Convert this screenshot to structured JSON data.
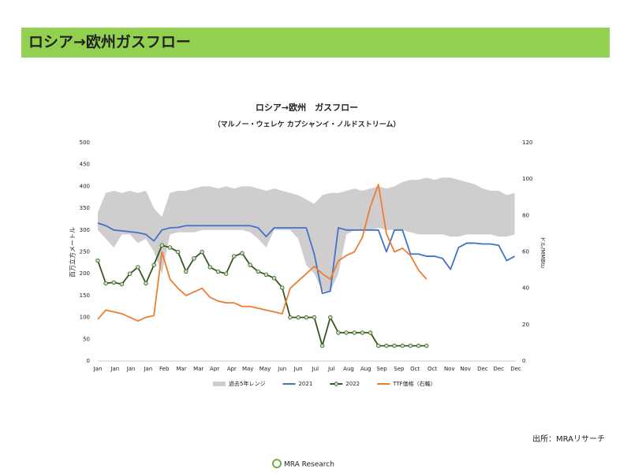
{
  "header": {
    "title": "ロシア→欧州ガスフロー"
  },
  "chart_data": {
    "type": "line",
    "title": "ロシア→欧州　ガスフロー",
    "subtitle": "（マルノー・ウェレケ カプシャンイ・ノルドストリーム）",
    "ylabel": "百万立方メートル",
    "y2label": "ドル/MMBtu",
    "xlim": [
      0,
      365
    ],
    "xticks": [
      {
        "value": 0,
        "label": "Jan"
      },
      {
        "value": 15,
        "label": "Jan"
      },
      {
        "value": 29,
        "label": "Jan"
      },
      {
        "value": 44,
        "label": "Jan"
      },
      {
        "value": 58,
        "label": "Feb"
      },
      {
        "value": 73,
        "label": "Mar"
      },
      {
        "value": 88,
        "label": "Mar"
      },
      {
        "value": 102,
        "label": "Apr"
      },
      {
        "value": 117,
        "label": "Apr"
      },
      {
        "value": 131,
        "label": "May"
      },
      {
        "value": 146,
        "label": "May"
      },
      {
        "value": 161,
        "label": "Jun"
      },
      {
        "value": 175,
        "label": "Jun"
      },
      {
        "value": 190,
        "label": "Jul"
      },
      {
        "value": 204,
        "label": "Jul"
      },
      {
        "value": 219,
        "label": "Aug"
      },
      {
        "value": 234,
        "label": "Aug"
      },
      {
        "value": 248,
        "label": "Sep"
      },
      {
        "value": 263,
        "label": "Sep"
      },
      {
        "value": 277,
        "label": "Oct"
      },
      {
        "value": 292,
        "label": "Oct"
      },
      {
        "value": 307,
        "label": "Nov"
      },
      {
        "value": 321,
        "label": "Nov"
      },
      {
        "value": 336,
        "label": "Dec"
      },
      {
        "value": 350,
        "label": "Dec"
      },
      {
        "value": 365,
        "label": "Dec"
      }
    ],
    "ylim": [
      0,
      500
    ],
    "yticks": [
      0,
      50,
      100,
      150,
      200,
      250,
      300,
      350,
      400,
      450,
      500
    ],
    "y2lim": [
      0,
      120
    ],
    "y2ticks": [
      0,
      20,
      40,
      60,
      80,
      100,
      120
    ],
    "x": [
      0,
      7,
      14,
      21,
      28,
      35,
      42,
      49,
      56,
      63,
      70,
      77,
      84,
      91,
      98,
      105,
      112,
      119,
      126,
      133,
      140,
      147,
      154,
      161,
      168,
      175,
      182,
      189,
      196,
      203,
      210,
      217,
      224,
      231,
      238,
      245,
      252,
      259,
      266,
      273,
      280,
      287,
      294,
      301,
      308,
      315,
      322,
      329,
      336,
      343,
      350,
      357,
      364
    ],
    "series": [
      {
        "name": "過去5年レンジ",
        "color": "#cfcdce",
        "kind": "range",
        "upper": [
          340,
          385,
          390,
          385,
          390,
          385,
          390,
          350,
          330,
          385,
          390,
          390,
          395,
          400,
          400,
          395,
          400,
          395,
          400,
          400,
          395,
          390,
          395,
          390,
          385,
          380,
          370,
          360,
          380,
          385,
          385,
          390,
          395,
          390,
          395,
          400,
          395,
          400,
          410,
          415,
          415,
          420,
          415,
          420,
          420,
          415,
          410,
          405,
          395,
          390,
          390,
          380,
          385
        ],
        "lower": [
          300,
          280,
          260,
          290,
          290,
          270,
          280,
          250,
          200,
          290,
          295,
          295,
          295,
          300,
          300,
          300,
          300,
          300,
          300,
          295,
          280,
          260,
          300,
          300,
          300,
          280,
          220,
          200,
          160,
          160,
          200,
          290,
          300,
          300,
          300,
          305,
          300,
          300,
          300,
          295,
          290,
          290,
          290,
          290,
          285,
          285,
          290,
          290,
          290,
          290,
          285,
          285,
          290
        ]
      },
      {
        "name": "2021",
        "color": "#4472c4",
        "values": [
          316,
          310,
          300,
          298,
          296,
          294,
          290,
          275,
          300,
          305,
          306,
          310,
          310,
          310,
          310,
          310,
          310,
          310,
          310,
          310,
          305,
          285,
          305,
          305,
          305,
          305,
          305,
          245,
          155,
          160,
          305,
          300,
          300,
          300,
          300,
          300,
          250,
          300,
          300,
          245,
          245,
          240,
          240,
          235,
          210,
          260,
          270,
          270,
          268,
          268,
          265,
          230,
          240
        ]
      },
      {
        "name": "2022",
        "color": "#375623",
        "marker": "#c5e0b4",
        "values": [
          230,
          178,
          180,
          176,
          200,
          215,
          178,
          220,
          265,
          260,
          250,
          205,
          235,
          250,
          215,
          205,
          200,
          240,
          247,
          220,
          205,
          198,
          190,
          168,
          100,
          100,
          100,
          100,
          35,
          100,
          65,
          65,
          65,
          65,
          65,
          35,
          35,
          35,
          35,
          35,
          35,
          35,
          null,
          null,
          null,
          null,
          null,
          null,
          null,
          null,
          null,
          null,
          null
        ]
      },
      {
        "name": "TTF価格（右軸）",
        "color": "#ed7d31",
        "axis": "y2",
        "values": [
          23,
          28,
          27,
          26,
          24,
          22,
          24,
          25,
          60,
          45,
          40,
          36,
          38,
          40,
          35,
          33,
          32,
          32,
          30,
          30,
          29,
          28,
          27,
          26,
          40,
          44,
          48,
          52,
          48,
          45,
          55,
          58,
          60,
          68,
          85,
          97,
          70,
          60,
          62,
          58,
          50,
          45,
          null,
          null,
          null,
          null,
          null,
          null,
          null,
          null,
          null,
          null,
          null
        ]
      }
    ]
  },
  "source": "出所：MRAリサーチ",
  "logo": "MRA Research"
}
